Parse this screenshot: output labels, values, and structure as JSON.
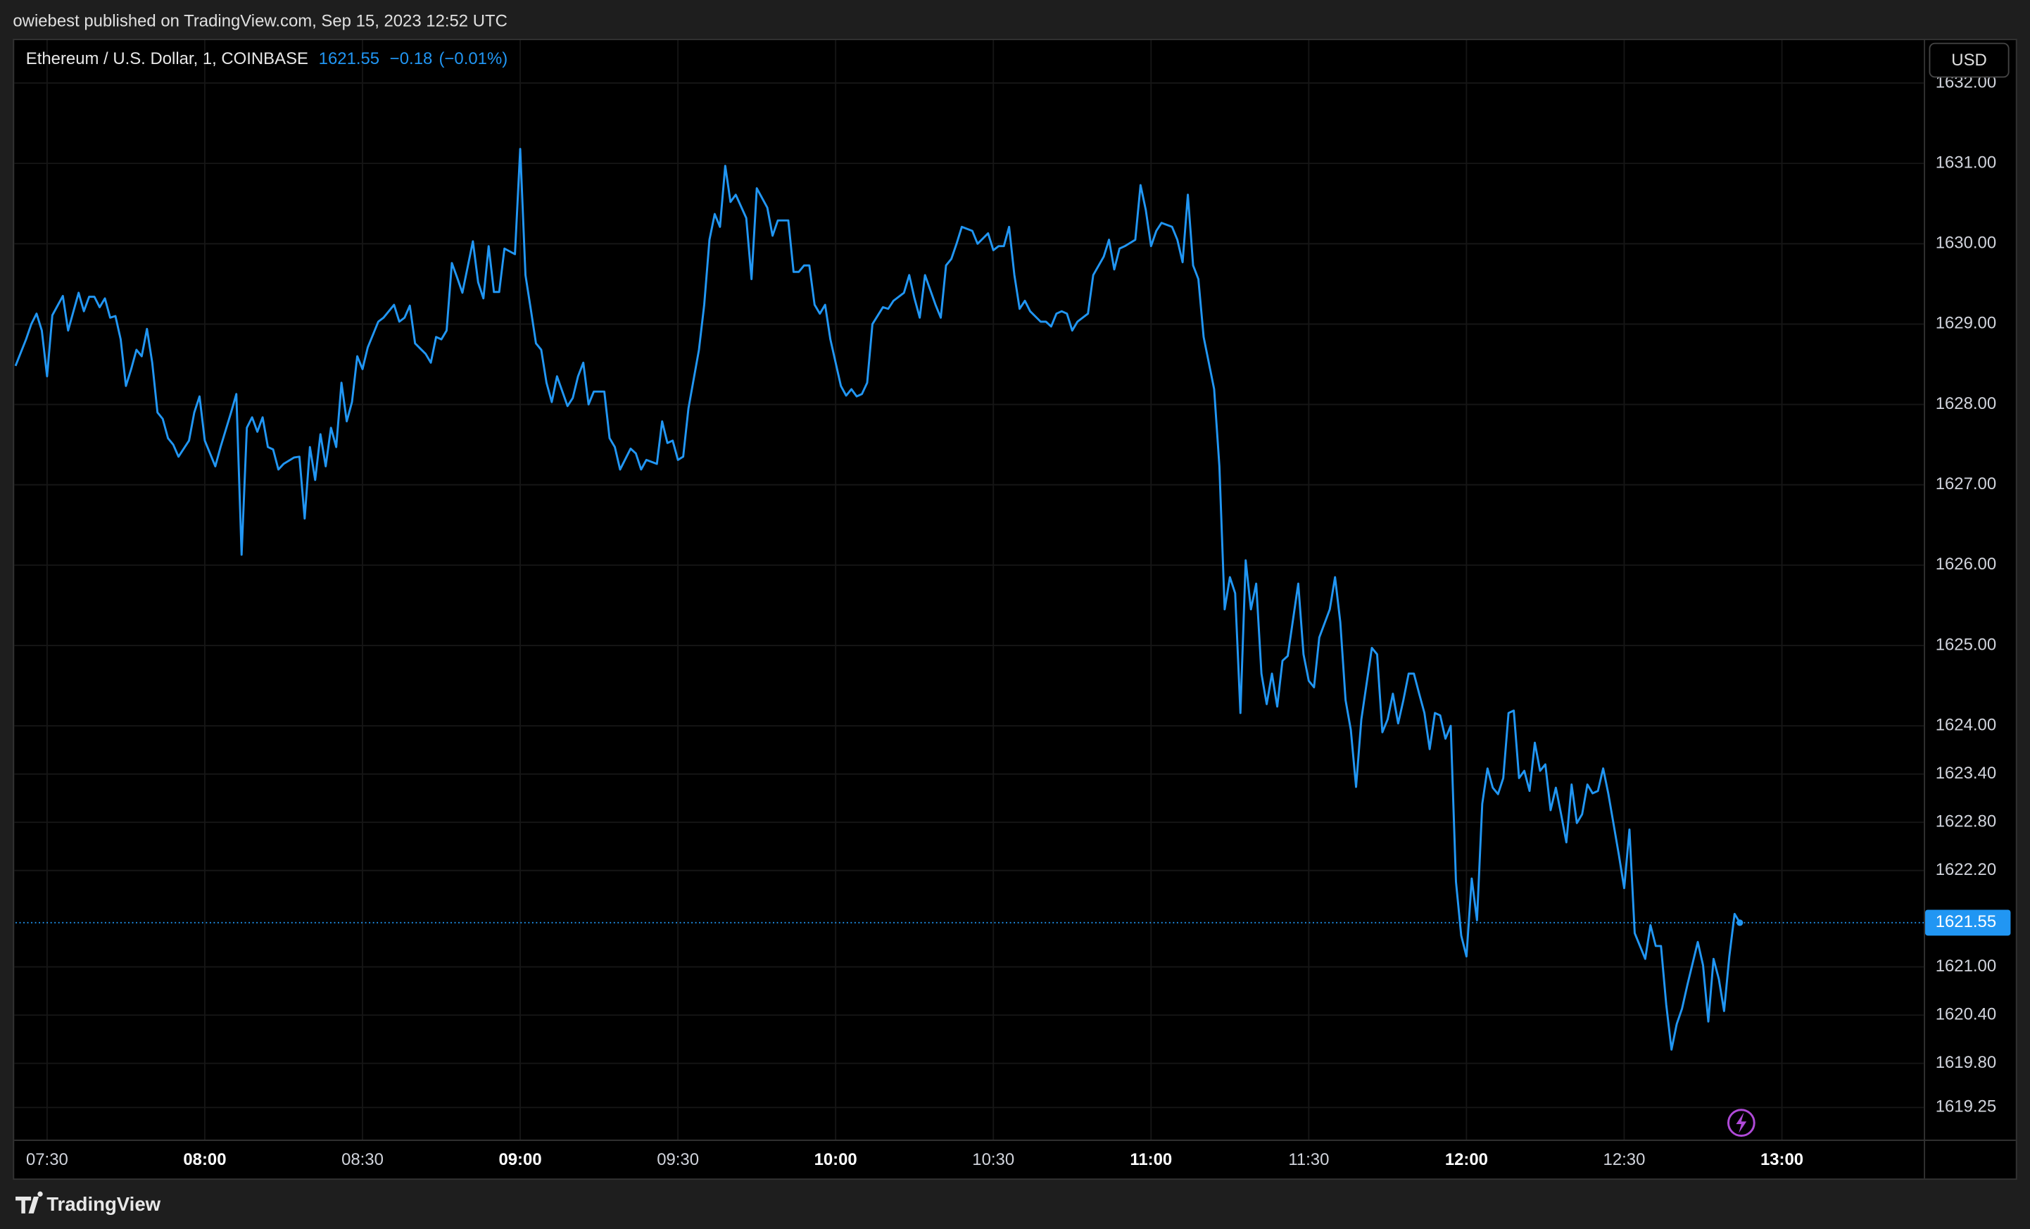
{
  "published": "owiebest published on TradingView.com, Sep 15, 2023 12:52 UTC",
  "brand": "TradingView",
  "currency": "USD",
  "chart_data": {
    "type": "line",
    "title": "Ethereum / U.S. Dollar, 1, COINBASE",
    "last_value": 1621.55,
    "change": {
      "value": -0.18,
      "label": "−0.18"
    },
    "change_percent": {
      "value": -0.01,
      "label": "(−0.01%)"
    },
    "color": "#2196f3",
    "grid": true,
    "xlim": [
      "07:24",
      "13:27"
    ],
    "ylim": [
      1618.85,
      1632.55
    ],
    "xticks": [
      "07:30",
      "08:00",
      "08:30",
      "09:00",
      "09:30",
      "10:00",
      "10:30",
      "11:00",
      "11:30",
      "12:00",
      "12:30",
      "13:00"
    ],
    "yticks": [
      {
        "value": 1632,
        "label": "1632.00"
      },
      {
        "value": 1631,
        "label": "1631.00"
      },
      {
        "value": 1630,
        "label": "1630.00"
      },
      {
        "value": 1629,
        "label": "1629.00"
      },
      {
        "value": 1628,
        "label": "1628.00"
      },
      {
        "value": 1627,
        "label": "1627.00"
      },
      {
        "value": 1626,
        "label": "1626.00"
      },
      {
        "value": 1625,
        "label": "1625.00"
      },
      {
        "value": 1624,
        "label": "1624.00"
      },
      {
        "value": 1623.4,
        "label": "1623.40"
      },
      {
        "value": 1622.8,
        "label": "1622.80"
      },
      {
        "value": 1622.2,
        "label": "1622.20"
      },
      {
        "value": 1621,
        "label": "1621.00"
      },
      {
        "value": 1620.4,
        "label": "1620.40"
      },
      {
        "value": 1619.8,
        "label": "1619.80"
      },
      {
        "value": 1619.25,
        "label": "1619.25"
      }
    ],
    "x": [
      "07:24",
      "07:26",
      "07:27",
      "07:28",
      "07:29",
      "07:30",
      "07:31",
      "07:33",
      "07:34",
      "07:36",
      "07:37",
      "07:38",
      "07:39",
      "07:40",
      "07:41",
      "07:42",
      "07:43",
      "07:44",
      "07:45",
      "07:46",
      "07:47",
      "07:48",
      "07:49",
      "07:50",
      "07:51",
      "07:52",
      "07:53",
      "07:54",
      "07:55",
      "07:57",
      "07:58",
      "07:59",
      "08:00",
      "08:01",
      "08:02",
      "08:03",
      "08:05",
      "08:06",
      "08:07",
      "08:08",
      "08:09",
      "08:10",
      "08:11",
      "08:12",
      "08:13",
      "08:14",
      "08:15",
      "08:17",
      "08:18",
      "08:19",
      "08:20",
      "08:21",
      "08:22",
      "08:23",
      "08:24",
      "08:25",
      "08:26",
      "08:27",
      "08:28",
      "08:29",
      "08:30",
      "08:31",
      "08:33",
      "08:34",
      "08:36",
      "08:37",
      "08:38",
      "08:39",
      "08:40",
      "08:42",
      "08:43",
      "08:44",
      "08:45",
      "08:46",
      "08:47",
      "08:48",
      "08:49",
      "08:51",
      "08:52",
      "08:53",
      "08:54",
      "08:55",
      "08:56",
      "08:57",
      "08:59",
      "09:00",
      "09:01",
      "09:02",
      "09:03",
      "09:04",
      "09:05",
      "09:06",
      "09:07",
      "09:09",
      "09:10",
      "09:11",
      "09:12",
      "09:13",
      "09:14",
      "09:16",
      "09:17",
      "09:18",
      "09:19",
      "09:21",
      "09:22",
      "09:23",
      "09:24",
      "09:26",
      "09:27",
      "09:28",
      "09:29",
      "09:30",
      "09:31",
      "09:32",
      "09:34",
      "09:35",
      "09:36",
      "09:37",
      "09:38",
      "09:39",
      "09:40",
      "09:41",
      "09:43",
      "09:44",
      "09:45",
      "09:47",
      "09:48",
      "09:49",
      "09:51",
      "09:52",
      "09:53",
      "09:54",
      "09:55",
      "09:56",
      "09:57",
      "09:58",
      "09:59",
      "10:01",
      "10:02",
      "10:03",
      "10:04",
      "10:05",
      "10:06",
      "10:07",
      "10:09",
      "10:10",
      "10:11",
      "10:13",
      "10:14",
      "10:15",
      "10:16",
      "10:17",
      "10:19",
      "10:20",
      "10:21",
      "10:22",
      "10:23",
      "10:24",
      "10:26",
      "10:27",
      "10:29",
      "10:30",
      "10:31",
      "10:32",
      "10:33",
      "10:34",
      "10:35",
      "10:36",
      "10:37",
      "10:39",
      "10:40",
      "10:41",
      "10:42",
      "10:43",
      "10:44",
      "10:45",
      "10:46",
      "10:48",
      "10:49",
      "10:51",
      "10:52",
      "10:53",
      "10:54",
      "10:55",
      "10:57",
      "10:58",
      "10:59",
      "11:00",
      "11:01",
      "11:02",
      "11:04",
      "11:05",
      "11:06",
      "11:07",
      "11:08",
      "11:09",
      "11:10",
      "11:12",
      "11:13",
      "11:14",
      "11:15",
      "11:16",
      "11:17",
      "11:18",
      "11:19",
      "11:20",
      "11:21",
      "11:22",
      "11:23",
      "11:24",
      "11:25",
      "11:26",
      "11:28",
      "11:29",
      "11:30",
      "11:31",
      "11:32",
      "11:34",
      "11:35",
      "11:36",
      "11:37",
      "11:38",
      "11:39",
      "11:40",
      "11:42",
      "11:43",
      "11:44",
      "11:45",
      "11:46",
      "11:47",
      "11:48",
      "11:49",
      "11:50",
      "11:51",
      "11:52",
      "11:53",
      "11:54",
      "11:55",
      "11:56",
      "11:57",
      "11:58",
      "11:59",
      "12:00",
      "12:01",
      "12:02",
      "12:03",
      "12:04",
      "12:05",
      "12:06",
      "12:07",
      "12:08",
      "12:09",
      "12:10",
      "12:11",
      "12:12",
      "12:13",
      "12:14",
      "12:15",
      "12:16",
      "12:17",
      "12:18",
      "12:19",
      "12:20",
      "12:21",
      "12:22",
      "12:23",
      "12:24",
      "12:25",
      "12:26",
      "12:27",
      "12:29",
      "12:30",
      "12:31",
      "12:32",
      "12:33",
      "12:34",
      "12:35",
      "12:36",
      "12:37",
      "12:38",
      "12:39",
      "12:40",
      "12:41",
      "12:42",
      "12:44",
      "12:45",
      "12:46",
      "12:47",
      "12:48",
      "12:49",
      "12:50",
      "12:51",
      "12:52"
    ],
    "values": [
      1628.48,
      1628.81,
      1629.0,
      1629.13,
      1628.92,
      1628.35,
      1629.11,
      1629.35,
      1628.92,
      1629.39,
      1629.16,
      1629.34,
      1629.34,
      1629.21,
      1629.32,
      1629.08,
      1629.1,
      1628.81,
      1628.23,
      1628.44,
      1628.68,
      1628.6,
      1628.94,
      1628.52,
      1627.9,
      1627.82,
      1627.58,
      1627.5,
      1627.35,
      1627.55,
      1627.9,
      1628.1,
      1627.55,
      1627.39,
      1627.23,
      1627.47,
      1627.9,
      1628.13,
      1626.13,
      1627.71,
      1627.84,
      1627.66,
      1627.84,
      1627.47,
      1627.44,
      1627.19,
      1627.26,
      1627.34,
      1627.35,
      1626.58,
      1627.47,
      1627.06,
      1627.63,
      1627.23,
      1627.71,
      1627.47,
      1628.27,
      1627.79,
      1628.03,
      1628.6,
      1628.44,
      1628.71,
      1629.03,
      1629.08,
      1629.24,
      1629.03,
      1629.08,
      1629.23,
      1628.76,
      1628.63,
      1628.52,
      1628.84,
      1628.81,
      1628.92,
      1629.76,
      1629.58,
      1629.39,
      1630.03,
      1629.52,
      1629.32,
      1629.97,
      1629.4,
      1629.4,
      1629.94,
      1629.87,
      1631.18,
      1629.61,
      1629.19,
      1628.76,
      1628.68,
      1628.27,
      1628.03,
      1628.35,
      1627.98,
      1628.08,
      1628.35,
      1628.52,
      1628.0,
      1628.16,
      1628.16,
      1627.58,
      1627.47,
      1627.19,
      1627.45,
      1627.39,
      1627.19,
      1627.31,
      1627.26,
      1627.79,
      1627.52,
      1627.55,
      1627.31,
      1627.35,
      1627.95,
      1628.68,
      1629.24,
      1630.05,
      1630.37,
      1630.21,
      1630.97,
      1630.52,
      1630.61,
      1630.32,
      1629.56,
      1630.69,
      1630.45,
      1630.1,
      1630.29,
      1630.29,
      1629.65,
      1629.65,
      1629.73,
      1629.73,
      1629.24,
      1629.13,
      1629.24,
      1628.81,
      1628.23,
      1628.11,
      1628.19,
      1628.1,
      1628.13,
      1628.27,
      1629.0,
      1629.21,
      1629.19,
      1629.29,
      1629.39,
      1629.61,
      1629.32,
      1629.08,
      1629.61,
      1629.24,
      1629.08,
      1629.73,
      1629.81,
      1630.0,
      1630.21,
      1630.16,
      1630.0,
      1630.13,
      1629.92,
      1629.97,
      1629.97,
      1630.21,
      1629.61,
      1629.19,
      1629.29,
      1629.16,
      1629.03,
      1629.03,
      1628.97,
      1629.13,
      1629.16,
      1629.13,
      1628.92,
      1629.03,
      1629.13,
      1629.61,
      1629.84,
      1630.05,
      1629.68,
      1629.94,
      1629.97,
      1630.05,
      1630.73,
      1630.42,
      1629.97,
      1630.16,
      1630.26,
      1630.21,
      1630.05,
      1629.77,
      1630.61,
      1629.73,
      1629.56,
      1628.84,
      1628.19,
      1627.23,
      1625.45,
      1625.85,
      1625.65,
      1624.16,
      1626.06,
      1625.45,
      1625.77,
      1624.65,
      1624.27,
      1624.65,
      1624.24,
      1624.81,
      1624.87,
      1625.77,
      1624.89,
      1624.56,
      1624.48,
      1625.1,
      1625.45,
      1625.85,
      1625.29,
      1624.32,
      1623.95,
      1623.24,
      1624.08,
      1624.97,
      1624.89,
      1623.92,
      1624.08,
      1624.4,
      1624.03,
      1624.32,
      1624.65,
      1624.65,
      1624.4,
      1624.16,
      1623.71,
      1624.16,
      1624.13,
      1623.84,
      1624.0,
      1622.06,
      1621.39,
      1621.13,
      1622.1,
      1621.58,
      1623.03,
      1623.47,
      1623.23,
      1623.15,
      1623.35,
      1624.16,
      1624.19,
      1623.35,
      1623.44,
      1623.19,
      1623.79,
      1623.44,
      1623.52,
      1622.95,
      1623.23,
      1622.9,
      1622.55,
      1623.27,
      1622.79,
      1622.9,
      1623.27,
      1623.16,
      1623.19,
      1623.47,
      1623.15,
      1622.39,
      1621.98,
      1622.71,
      1621.42,
      1621.26,
      1621.1,
      1621.52,
      1621.26,
      1621.26,
      1620.53,
      1619.97,
      1620.29,
      1620.48,
      1620.77,
      1621.31,
      1621.02,
      1620.32,
      1621.1,
      1620.85,
      1620.45,
      1621.13,
      1621.66,
      1621.55
    ]
  }
}
